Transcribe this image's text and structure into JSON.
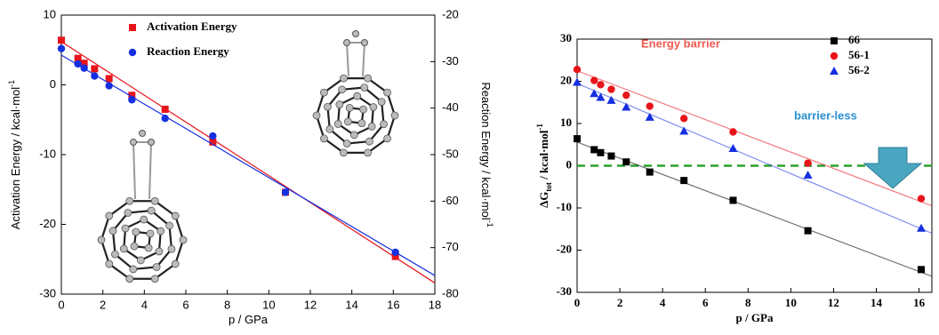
{
  "chart_data": [
    {
      "type": "scatter",
      "x_label": "p / GPa",
      "y_label": "Activation Energy / kcal·mol",
      "y_label_sup": "-1",
      "y2_label": "Reaction Energy / kcal·mol",
      "y2_label_sup": "-1",
      "xlim": [
        0,
        18
      ],
      "xticks": [
        0,
        2,
        4,
        6,
        8,
        10,
        12,
        14,
        16,
        18
      ],
      "ylim": [
        -30,
        10
      ],
      "yticks": [
        -30,
        -20,
        -10,
        0,
        10
      ],
      "y2lim": [
        -80,
        -20
      ],
      "y2ticks": [
        -80,
        -70,
        -60,
        -50,
        -40,
        -30,
        -20
      ],
      "legend": "top-left",
      "series": [
        {
          "name": "Activation Energy",
          "color": "#e8141b",
          "marker": "square",
          "x": [
            0,
            0.8,
            1.1,
            1.6,
            2.3,
            3.4,
            5.0,
            7.3,
            10.8,
            16.1
          ],
          "values": [
            6.4,
            3.8,
            3.1,
            2.3,
            0.9,
            -1.5,
            -3.5,
            -8.2,
            -15.4,
            -24.6
          ],
          "fit": {
            "x": [
              0,
              18
            ],
            "values": [
              6.2,
              -28.4
            ]
          }
        },
        {
          "name": "Reaction Energy",
          "color": "#1530e0",
          "marker": "circle",
          "axis": "y2",
          "x": [
            0,
            0.8,
            1.1,
            1.6,
            2.3,
            3.4,
            5.0,
            7.3,
            10.8,
            16.1
          ],
          "values": [
            -27.2,
            -30.5,
            -31.4,
            -33.1,
            -35.2,
            -38.2,
            -42.2,
            -46.0,
            -58.1,
            -71.0
          ],
          "fit": {
            "x": [
              0,
              18
            ],
            "values": [
              -28.6,
              -76.0
            ]
          }
        }
      ]
    },
    {
      "type": "scatter",
      "x_label": "p / GPa",
      "y_label": "ΔG",
      "y_label_sub": "tot",
      "y_label_rest": " / kcal·mol",
      "y_label_sup": "-1",
      "xlim": [
        0,
        16.6
      ],
      "xticks": [
        0,
        2,
        4,
        6,
        8,
        10,
        12,
        14,
        16
      ],
      "ylim": [
        -30,
        30
      ],
      "yticks": [
        -30,
        -20,
        -10,
        0,
        10,
        20,
        30
      ],
      "legend": "top-right",
      "reference_line": {
        "value": 0,
        "color": "#2ca02c"
      },
      "annotations": [
        {
          "text": "Energy barrier",
          "color": "#ef5a52"
        },
        {
          "text": "barrier-less",
          "color": "#2a8fd0"
        }
      ],
      "series": [
        {
          "name": "66",
          "color": "#000000",
          "marker": "square",
          "x": [
            0,
            0.8,
            1.1,
            1.6,
            2.3,
            3.4,
            5.0,
            7.3,
            10.8,
            16.1
          ],
          "values": [
            6.4,
            3.8,
            3.1,
            2.3,
            0.9,
            -1.5,
            -3.5,
            -8.2,
            -15.4,
            -24.6
          ],
          "fit": {
            "x": [
              0,
              16.6
            ],
            "values": [
              5.6,
              -26.2
            ]
          }
        },
        {
          "name": "56-1",
          "color": "#e8141b",
          "marker": "circle",
          "x": [
            0,
            0.8,
            1.1,
            1.6,
            2.3,
            3.4,
            5.0,
            7.3,
            10.8,
            16.1
          ],
          "values": [
            22.8,
            20.2,
            19.2,
            18.1,
            16.7,
            14.1,
            11.2,
            8.0,
            0.6,
            -7.8
          ],
          "fit": {
            "x": [
              0,
              16.6
            ],
            "values": [
              22.5,
              -9.5
            ]
          }
        },
        {
          "name": "56-2",
          "color": "#1530e0",
          "marker": "triangle",
          "x": [
            0,
            0.8,
            1.1,
            1.6,
            2.3,
            3.4,
            5.0,
            7.3,
            10.8,
            16.1
          ],
          "values": [
            19.8,
            17.1,
            16.2,
            15.5,
            13.9,
            11.5,
            8.2,
            4.1,
            -2.2,
            -14.8
          ],
          "fit": {
            "x": [
              0,
              16.6
            ],
            "values": [
              19.5,
              -16.0
            ]
          }
        }
      ]
    }
  ]
}
